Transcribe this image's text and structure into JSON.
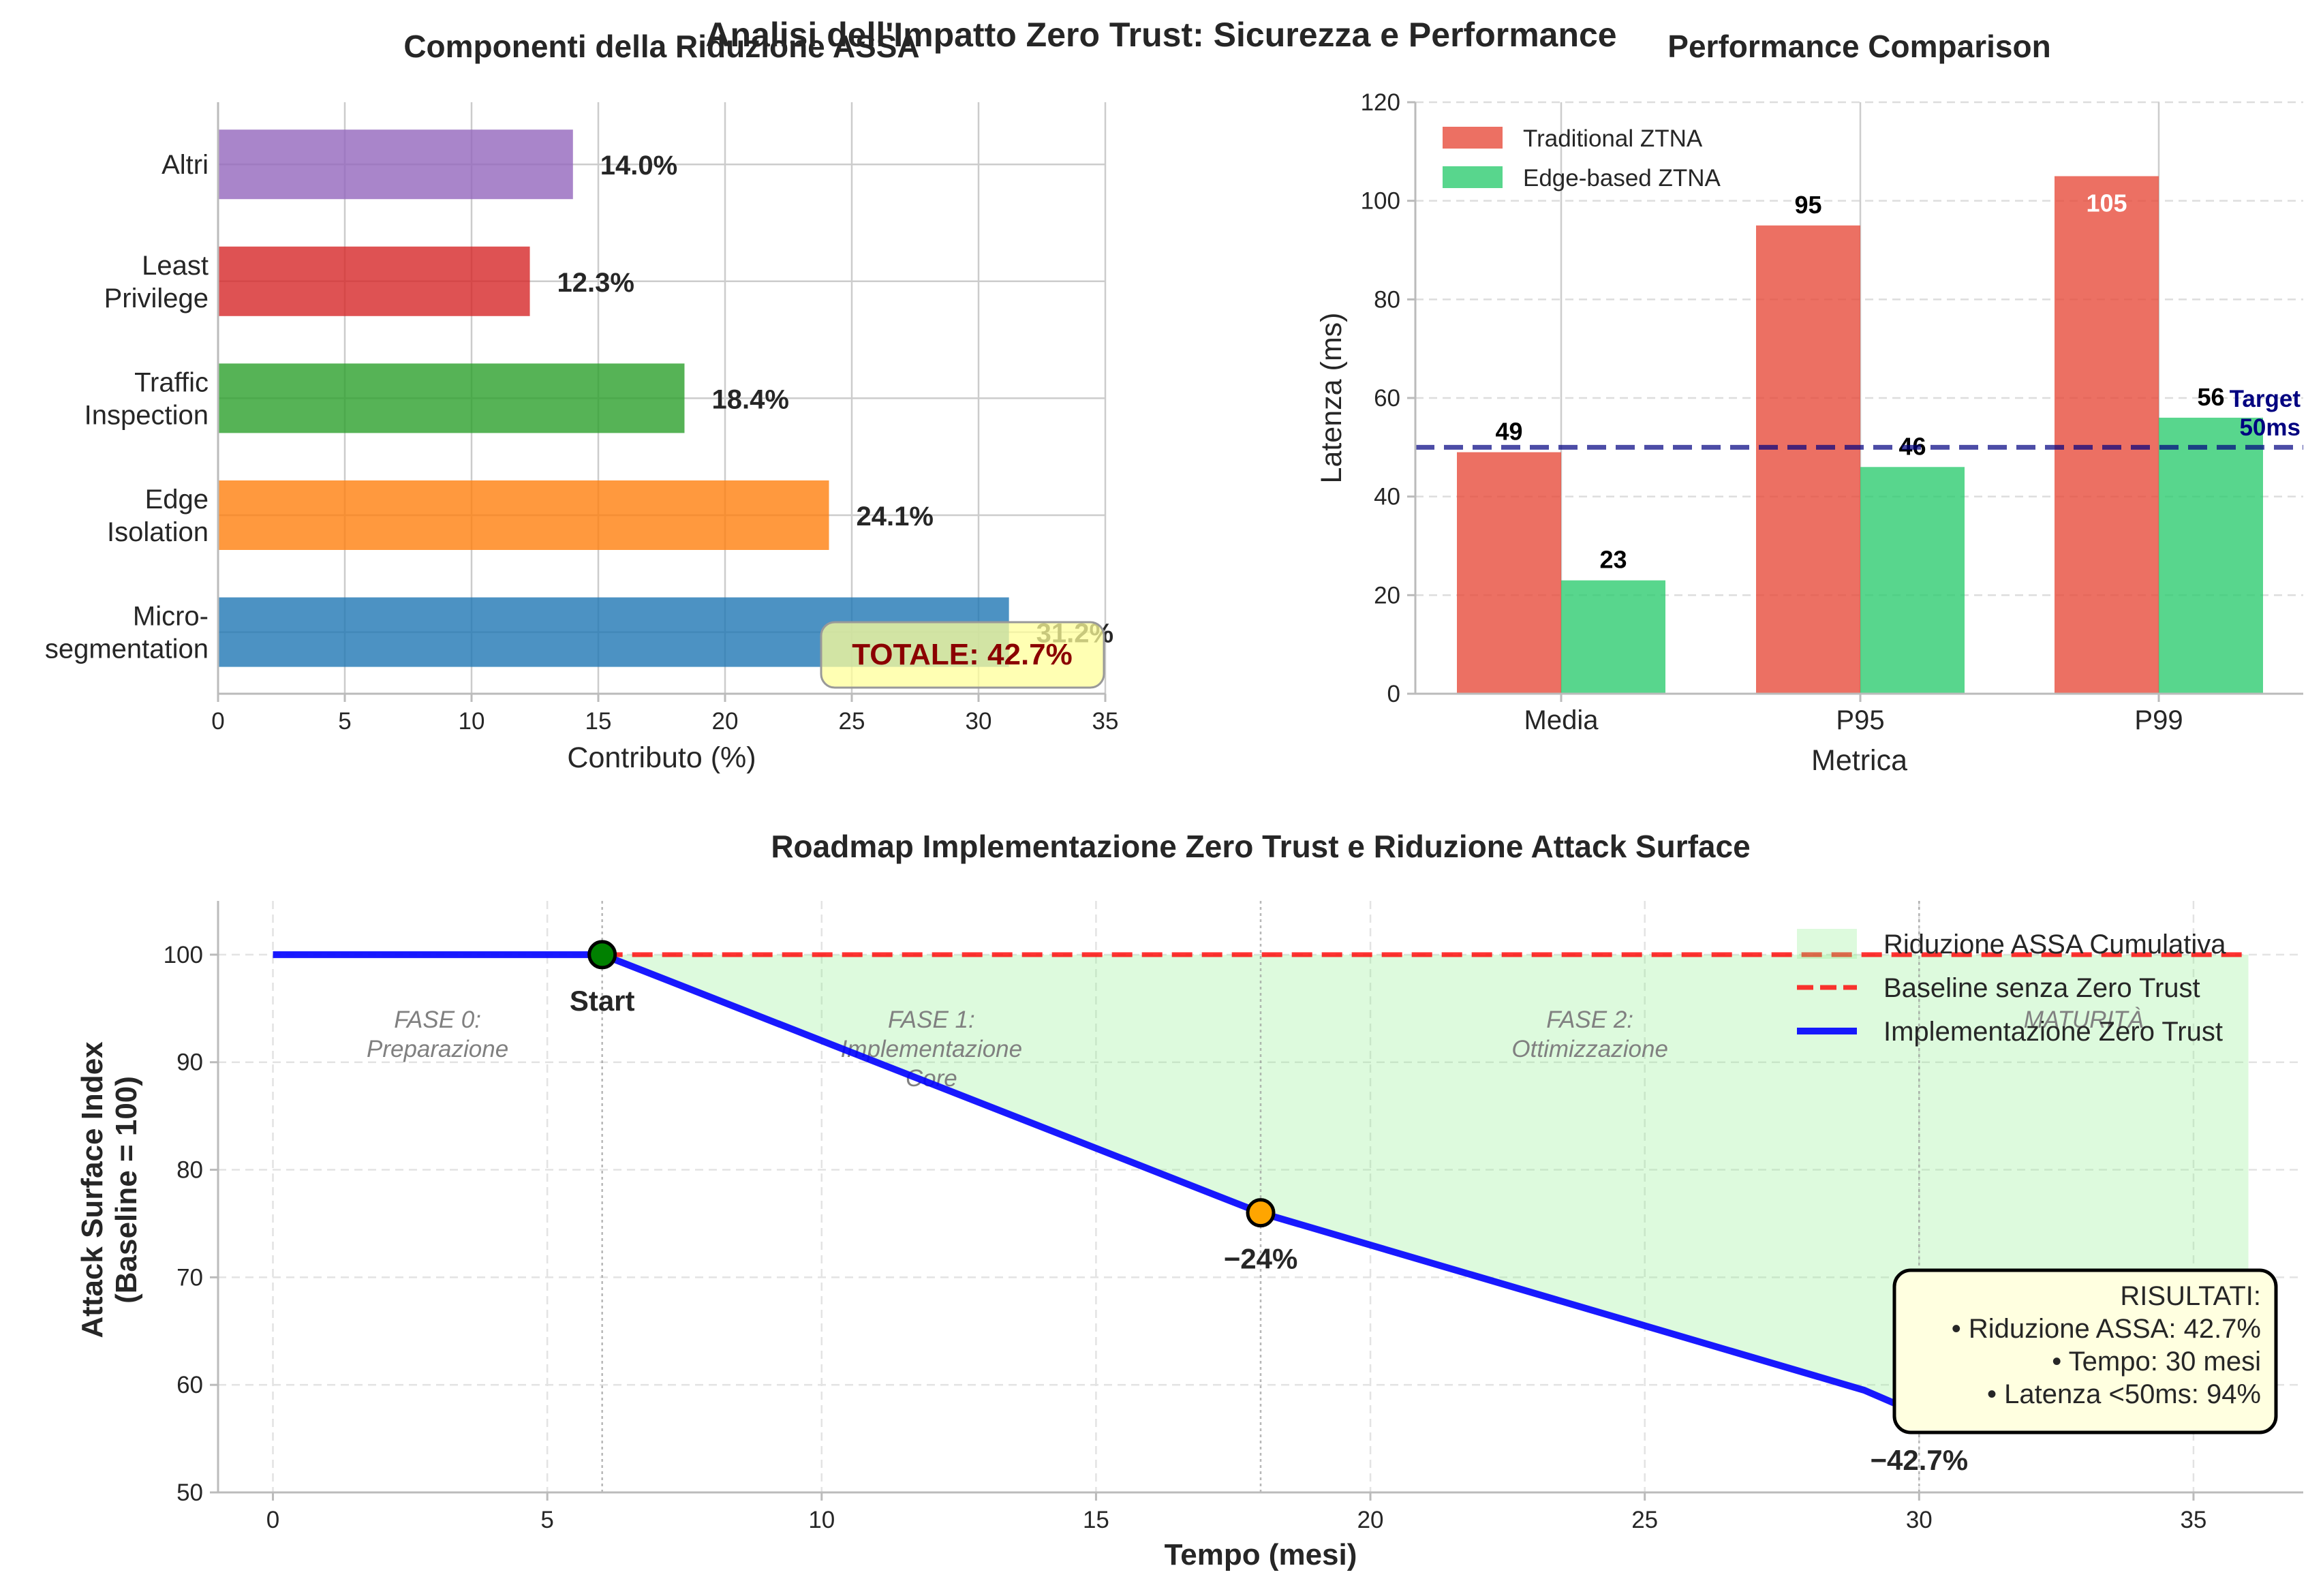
{
  "figure": {
    "suptitle": "Analisi dell'Impatto Zero Trust: Sicurezza e Performance"
  },
  "chart_data": [
    {
      "type": "bar",
      "orientation": "horizontal",
      "title": "Componenti della Riduzione ASSA",
      "xlabel": "Contributo (%)",
      "ylabel": "",
      "xlim": [
        0,
        35
      ],
      "xticks": [
        0,
        5,
        10,
        15,
        20,
        25,
        30,
        35
      ],
      "grid": true,
      "categories": [
        "Micro-\nsegmentation",
        "Edge\nIsolation",
        "Traffic\nInspection",
        "Least\nPrivilege",
        "Altri"
      ],
      "values": [
        31.2,
        24.1,
        18.4,
        12.3,
        14.0
      ],
      "value_labels": [
        "31.2%",
        "24.1%",
        "18.4%",
        "12.3%",
        "14.0%"
      ],
      "colors": [
        "#1f77b4",
        "#ff7f0e",
        "#2ca02c",
        "#d62728",
        "#9467bd"
      ],
      "annotation": {
        "text": "TOTALE: 42.7%",
        "color": "#8b0000",
        "box_color": "#ffff99"
      }
    },
    {
      "type": "bar",
      "title": "Performance Comparison",
      "xlabel": "Metrica",
      "ylabel": "Latenza (ms)",
      "ylim": [
        0,
        120
      ],
      "yticks": [
        0,
        20,
        40,
        60,
        80,
        100,
        120
      ],
      "grid": true,
      "legend_position": "upper-left",
      "categories": [
        "Media",
        "P95",
        "P99"
      ],
      "series": [
        {
          "name": "Traditional ZTNA",
          "values": [
            49,
            95,
            105
          ],
          "labels": [
            "49",
            "95",
            "105"
          ],
          "color": "#e74c3c"
        },
        {
          "name": "Edge-based ZTNA",
          "values": [
            23,
            46,
            56
          ],
          "labels": [
            "23",
            "46",
            "56"
          ],
          "color": "#2ecc71"
        }
      ],
      "target_line": {
        "value": 50,
        "label": "Target\n50ms",
        "color": "#000080"
      }
    },
    {
      "type": "line",
      "title": "Roadmap Implementazione Zero Trust e Riduzione Attack Surface",
      "xlabel": "Tempo (mesi)",
      "ylabel": "Attack Surface Index\n(Baseline = 100)",
      "xlim": [
        -1,
        37
      ],
      "ylim": [
        50,
        105
      ],
      "xticks": [
        0,
        5,
        10,
        15,
        20,
        25,
        30,
        35
      ],
      "yticks": [
        50,
        60,
        70,
        80,
        90,
        100
      ],
      "grid": true,
      "legend_position": "upper-right",
      "series": [
        {
          "name": "Riduzione ASSA Cumulativa",
          "kind": "area",
          "color": "#90ee90"
        },
        {
          "name": "Baseline senza Zero Trust",
          "kind": "dashed",
          "color": "#ff0000",
          "x": [
            6,
            36
          ],
          "y": [
            100,
            100
          ]
        },
        {
          "name": "Implementazione Zero Trust",
          "kind": "line",
          "color": "#0000ff",
          "x": [
            0,
            6,
            18,
            29,
            30
          ],
          "y": [
            100,
            100,
            76,
            59.5,
            57.3
          ]
        }
      ],
      "milestones": [
        {
          "x": 6,
          "y": 100,
          "label": "Start",
          "color": "#008000"
        },
        {
          "x": 18,
          "y": 76,
          "label": "−24%",
          "color": "#ffa500"
        },
        {
          "x": 30,
          "y": 57.3,
          "label": "−42.7%",
          "color": "#ff0000"
        }
      ],
      "phase_lines": [
        6,
        18,
        30
      ],
      "phases": [
        {
          "x": 3,
          "label": "FASE 0:\nPreparazione"
        },
        {
          "x": 12,
          "label": "FASE 1:\nImplementazione\nCore"
        },
        {
          "x": 24,
          "label": "FASE 2:\nOttimizzazione"
        },
        {
          "x": 33,
          "label": "MATURITÀ"
        }
      ],
      "results_box": {
        "lines": [
          "RISULTATI:",
          "• Riduzione ASSA: 42.7%",
          "• Tempo: 30 mesi",
          "• Latenza <50ms: 94%"
        ],
        "box_color": "#ffffe0"
      }
    }
  ]
}
